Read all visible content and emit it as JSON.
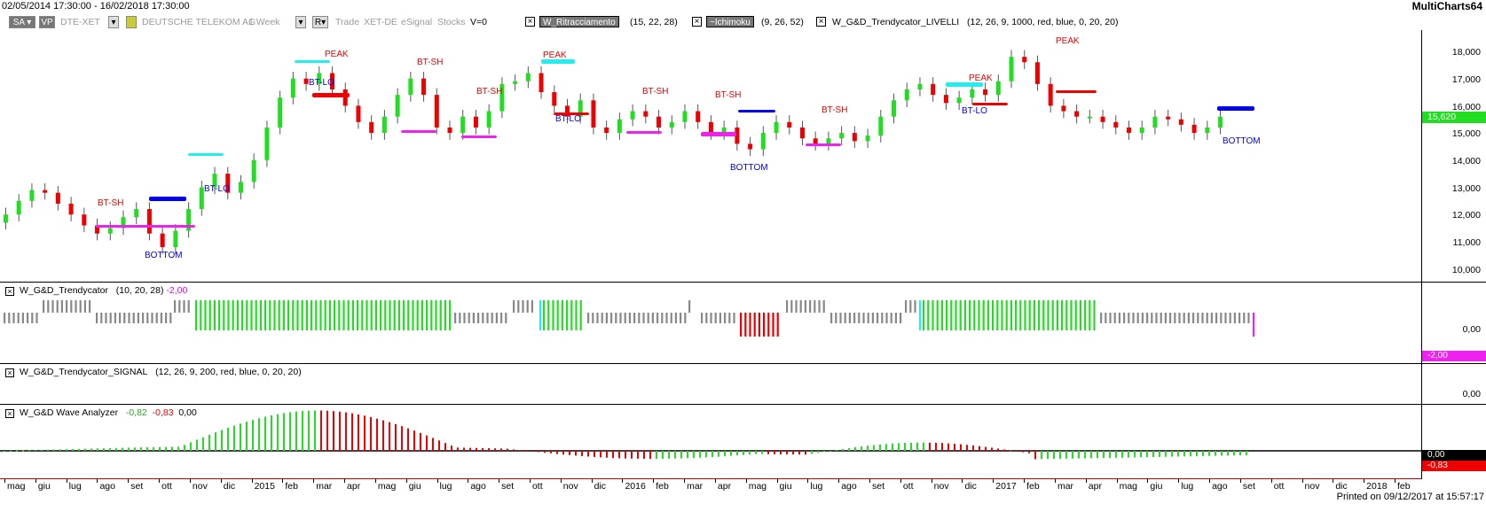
{
  "header": {
    "date_range": "02/05/2014 17:30:00 - 16/02/2018 17:30:00",
    "app_name": "MultiCharts64"
  },
  "toolbar": {
    "sa_label": "SA",
    "vp_label": "VP",
    "symbol": "DTE-XET",
    "company": "DEUTSCHE TELEKOM AG",
    "period": "1 Week",
    "r_label": "R",
    "trade": "Trade",
    "exchange": "XET-DE",
    "feed": "eSignal",
    "category": "Stocks",
    "volume": "V=0"
  },
  "studies": [
    {
      "name": "W_Ritracciamento",
      "params": "(15, 22, 28)"
    },
    {
      "name": "~Ichimoku",
      "params": "(9, 26, 52)"
    },
    {
      "name": "W_G&D_Trendycator_LIVELLI",
      "params": "(12, 26, 9, 1000, red, blue, 0, 20, 20)"
    }
  ],
  "price_pane": {
    "y_ticks": [
      "18,000",
      "17,000",
      "16,000",
      "15,000",
      "14,000",
      "13,000",
      "12,000",
      "11,000",
      "10,000"
    ],
    "last_price": "15,620",
    "annotations": [
      "PEAK",
      "BT-SH",
      "BT-LO",
      "BOTTOM"
    ]
  },
  "trendycator_pane": {
    "name": "W_G&D_Trendycator",
    "params": "(10, 20, 28)",
    "value": "-2,00",
    "zero_label": "0,00",
    "last_label": "-2,00"
  },
  "signal_pane": {
    "name": "W_G&D_Trendycator_SIGNAL",
    "params": "(12, 26, 9, 200, red, blue, 0, 20, 20)",
    "zero_label": "0,00"
  },
  "wave_pane": {
    "name": "W_G&D Wave Analyzer",
    "v1": "-0,82",
    "v2": "-0,83",
    "v3": "0,00",
    "label_zero": "0,00",
    "label_last": "-0,83"
  },
  "x_axis": [
    "mag",
    "giu",
    "lug",
    "ago",
    "set",
    "ott",
    "nov",
    "dic",
    "2015",
    "feb",
    "mar",
    "apr",
    "mag",
    "giu",
    "lug",
    "ago",
    "set",
    "ott",
    "nov",
    "dic",
    "2016",
    "feb",
    "mar",
    "apr",
    "mag",
    "giu",
    "lug",
    "ago",
    "set",
    "ott",
    "nov",
    "dic",
    "2017",
    "feb",
    "mar",
    "apr",
    "mag",
    "giu",
    "lug",
    "ago",
    "set",
    "ott",
    "nov",
    "dic",
    "2018",
    "feb"
  ],
  "footer": "Printed on 09/12/2017 at 15:57:17",
  "colors": {
    "up": "#22dd22",
    "down": "#ee0000",
    "cyan": "#22eeee",
    "blue": "#0000ee",
    "magenta": "#ee22ee",
    "gray": "#888888"
  }
}
